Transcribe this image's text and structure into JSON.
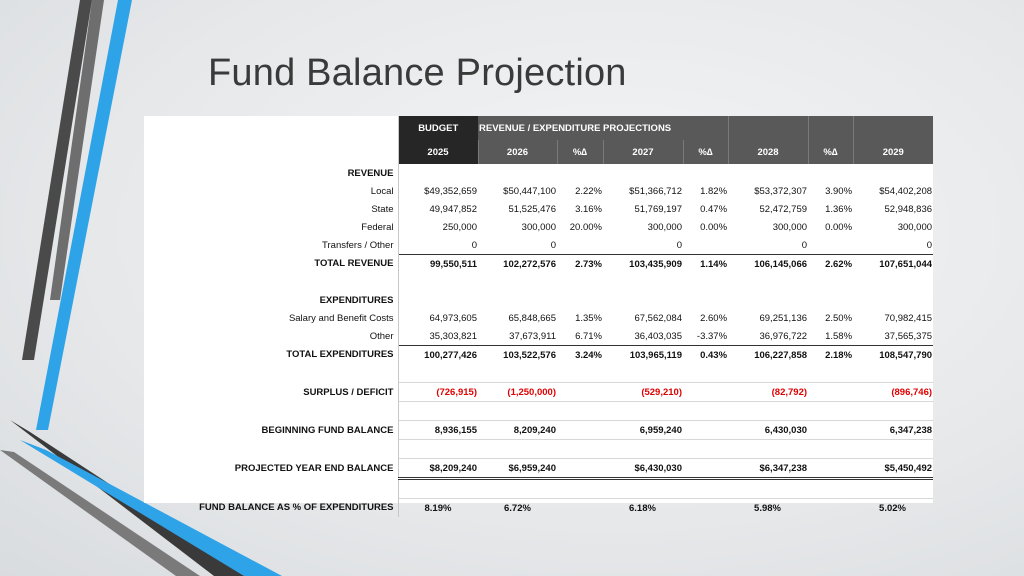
{
  "title": "Fund Balance Projection",
  "colors": {
    "header_dark": "#262626",
    "header_gray": "#595959",
    "deficit_red": "#e00000",
    "accent_blue": "#2ea3e8"
  },
  "header": {
    "budget": "BUDGET",
    "projections": "REVENUE / EXPENDITURE PROJECTIONS",
    "columns": [
      "2025",
      "2026",
      "%∆",
      "2027",
      "%∆",
      "2028",
      "%∆",
      "2029"
    ]
  },
  "revenue": {
    "heading": "REVENUE",
    "rows": [
      {
        "label": "Local",
        "values": [
          "$49,352,659",
          "$50,447,100",
          "2.22%",
          "$51,366,712",
          "1.82%",
          "$53,372,307",
          "3.90%",
          "$54,402,208"
        ]
      },
      {
        "label": "State",
        "values": [
          "49,947,852",
          "51,525,476",
          "3.16%",
          "51,769,197",
          "0.47%",
          "52,472,759",
          "1.36%",
          "52,948,836"
        ]
      },
      {
        "label": "Federal",
        "values": [
          "250,000",
          "300,000",
          "20.00%",
          "300,000",
          "0.00%",
          "300,000",
          "0.00%",
          "300,000"
        ]
      },
      {
        "label": "Transfers / Other",
        "values": [
          "0",
          "0",
          "",
          "0",
          "",
          "0",
          "",
          "0"
        ]
      }
    ],
    "total": {
      "label": "TOTAL REVENUE",
      "values": [
        "99,550,511",
        "102,272,576",
        "2.73%",
        "103,435,909",
        "1.14%",
        "106,145,066",
        "2.62%",
        "107,651,044"
      ]
    }
  },
  "expenditures": {
    "heading": "EXPENDITURES",
    "rows": [
      {
        "label": "Salary and Benefit Costs",
        "values": [
          "64,973,605",
          "65,848,665",
          "1.35%",
          "67,562,084",
          "2.60%",
          "69,251,136",
          "2.50%",
          "70,982,415"
        ]
      },
      {
        "label": "Other",
        "values": [
          "35,303,821",
          "37,673,911",
          "6.71%",
          "36,403,035",
          "-3.37%",
          "36,976,722",
          "1.58%",
          "37,565,375"
        ]
      }
    ],
    "total": {
      "label": "TOTAL EXPENDITURES",
      "values": [
        "100,277,426",
        "103,522,576",
        "3.24%",
        "103,965,119",
        "0.43%",
        "106,227,858",
        "2.18%",
        "108,547,790"
      ]
    }
  },
  "surplus": {
    "label": "SURPLUS / DEFICIT",
    "values": [
      "(726,915)",
      "(1,250,000)",
      "",
      "(529,210)",
      "",
      "(82,792)",
      "",
      "(896,746)"
    ]
  },
  "beginning": {
    "label": "BEGINNING FUND BALANCE",
    "values": [
      "8,936,155",
      "8,209,240",
      "",
      "6,959,240",
      "",
      "6,430,030",
      "",
      "6,347,238"
    ]
  },
  "projected": {
    "label": "PROJECTED YEAR END BALANCE",
    "values": [
      "$8,209,240",
      "$6,959,240",
      "",
      "$6,430,030",
      "",
      "$6,347,238",
      "",
      "$5,450,492"
    ]
  },
  "fund_pct": {
    "label": "FUND BALANCE AS % OF EXPENDITURES",
    "values": [
      "8.19%",
      "6.72%",
      "",
      "6.18%",
      "",
      "5.98%",
      "",
      "5.02%"
    ]
  }
}
